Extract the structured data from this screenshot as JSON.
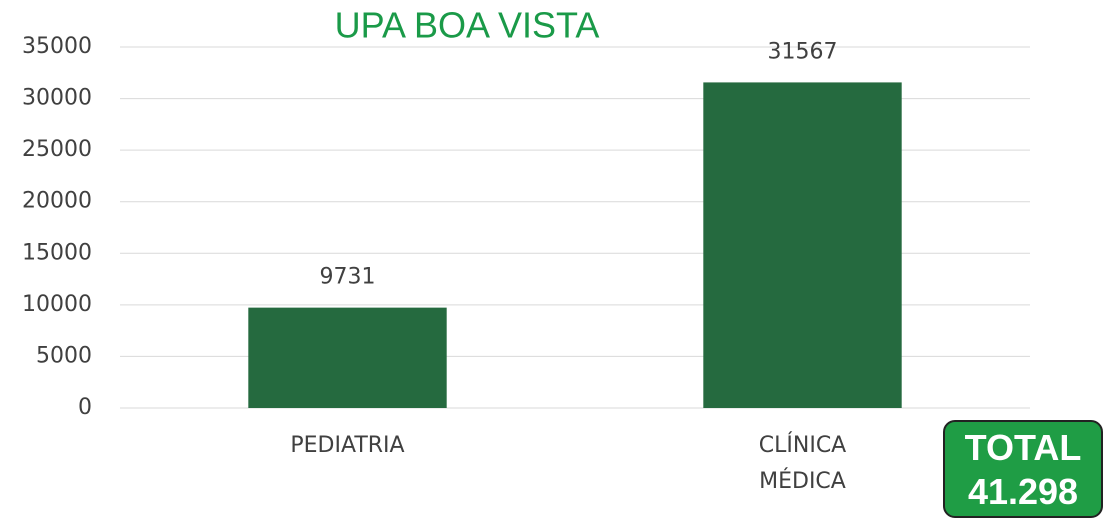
{
  "chart_data": {
    "type": "bar",
    "title": "UPA BOA VISTA",
    "categories": [
      "PEDIATRIA",
      "CLÍNICA MÉDICA"
    ],
    "values": [
      9731,
      31567
    ],
    "color": "#256a3f",
    "ylim": [
      0,
      35000
    ],
    "yticks": [
      0,
      5000,
      10000,
      15000,
      20000,
      25000,
      30000,
      35000
    ],
    "grid": true,
    "annotations": [
      "TOTAL",
      "41.298"
    ]
  }
}
